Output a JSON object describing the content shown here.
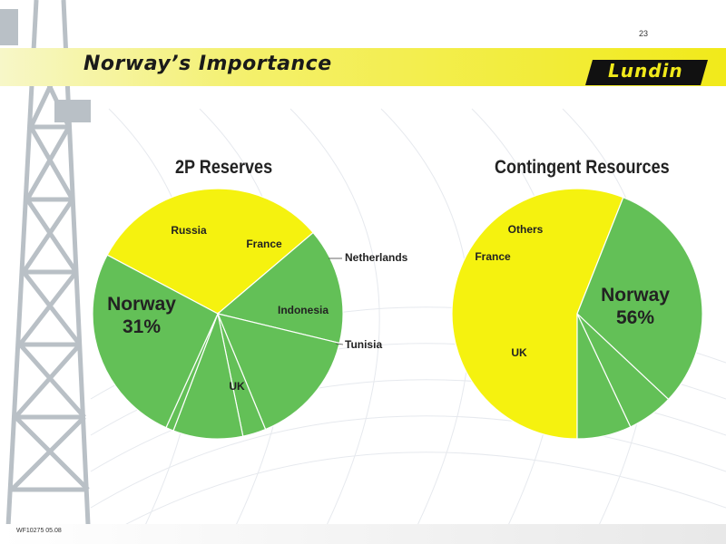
{
  "page": {
    "number": "23",
    "title": "Norway’s Importance",
    "logo_text": "Lundin",
    "footer_code": "WF10275 05.08"
  },
  "colors": {
    "green": "#63c057",
    "yellow": "#f5f20f",
    "slice_border": "#ffffff",
    "header_yellow": "#f1ea1a"
  },
  "chart_data": [
    {
      "type": "pie",
      "title": "2P Reserves",
      "slices": [
        {
          "label": "Norway",
          "value": 31,
          "percent_label": "31%",
          "color": "#f5f20f"
        },
        {
          "label": "Russia",
          "value": 15,
          "color": "#63c057"
        },
        {
          "label": "France",
          "value": 15,
          "color": "#63c057"
        },
        {
          "label": "Netherlands",
          "value": 3,
          "color": "#63c057"
        },
        {
          "label": "Indonesia",
          "value": 9,
          "color": "#63c057"
        },
        {
          "label": "Tunisia",
          "value": 1,
          "color": "#63c057"
        },
        {
          "label": "UK",
          "value": 26,
          "color": "#63c057"
        }
      ]
    },
    {
      "type": "pie",
      "title": "Contingent Resources",
      "slices": [
        {
          "label": "Norway",
          "value": 56,
          "percent_label": "56%",
          "color": "#f5f20f"
        },
        {
          "label": "UK",
          "value": 31,
          "color": "#63c057"
        },
        {
          "label": "France",
          "value": 6,
          "color": "#63c057"
        },
        {
          "label": "Others",
          "value": 7,
          "color": "#63c057"
        }
      ]
    }
  ]
}
